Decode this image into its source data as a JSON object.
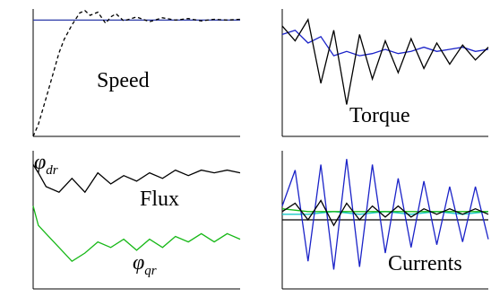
{
  "colors": {
    "reference": "#2b3aa8",
    "trace": "#000000",
    "blue": "#1a22c8",
    "green": "#17b817",
    "cyan": "#19c9c9",
    "axis": "#000000"
  },
  "chart_data": [
    {
      "type": "line",
      "annotation": "Speed",
      "xlim": [
        0,
        0.8
      ],
      "ylim": [
        0,
        160
      ],
      "grid": false,
      "series": [
        {
          "color": "blue",
          "style": "solid",
          "x": [
            0,
            0.8
          ],
          "y": [
            146,
            146
          ]
        },
        {
          "color": "black",
          "style": "dashed",
          "x": [
            0,
            0.02,
            0.05,
            0.08,
            0.1,
            0.12,
            0.15,
            0.18,
            0.2,
            0.22,
            0.25,
            0.28,
            0.3,
            0.32,
            0.35,
            0.4,
            0.45,
            0.5,
            0.55,
            0.6,
            0.65,
            0.7,
            0.75,
            0.8
          ],
          "y": [
            0,
            15,
            48,
            82,
            105,
            122,
            140,
            155,
            158,
            152,
            156,
            142,
            150,
            154,
            145,
            150,
            144,
            149,
            146,
            148,
            145,
            147,
            146,
            147
          ]
        }
      ]
    },
    {
      "type": "line",
      "annotation": "Torque",
      "xlim": [
        0,
        0.8
      ],
      "ylim": [
        -30,
        30
      ],
      "grid": false,
      "series": [
        {
          "color": "blue",
          "style": "solid",
          "x": [
            0,
            0.05,
            0.1,
            0.15,
            0.2,
            0.25,
            0.3,
            0.35,
            0.4,
            0.45,
            0.5,
            0.55,
            0.6,
            0.65,
            0.7,
            0.75,
            0.8
          ],
          "y": [
            18,
            20,
            14,
            17,
            8,
            10,
            8,
            9,
            11,
            9,
            10,
            12,
            10,
            11,
            12,
            10,
            11
          ]
        },
        {
          "color": "black",
          "style": "solid",
          "x": [
            0,
            0.05,
            0.1,
            0.15,
            0.2,
            0.25,
            0.3,
            0.35,
            0.4,
            0.45,
            0.5,
            0.55,
            0.6,
            0.65,
            0.7,
            0.75,
            0.8
          ],
          "y": [
            22,
            15,
            25,
            -5,
            20,
            -15,
            18,
            -3,
            15,
            0,
            16,
            2,
            14,
            4,
            13,
            6,
            12
          ]
        }
      ]
    },
    {
      "type": "line",
      "annotation": "Flux",
      "xlim": [
        0,
        0.8
      ],
      "ylim": [
        -0.15,
        0.35
      ],
      "grid": false,
      "series": [
        {
          "name": "φ_dr",
          "color": "black",
          "style": "solid",
          "x": [
            0,
            0.02,
            0.05,
            0.1,
            0.15,
            0.2,
            0.25,
            0.3,
            0.35,
            0.4,
            0.45,
            0.5,
            0.55,
            0.6,
            0.65,
            0.7,
            0.75,
            0.8
          ],
          "y": [
            0.3,
            0.27,
            0.22,
            0.2,
            0.25,
            0.2,
            0.27,
            0.23,
            0.26,
            0.24,
            0.27,
            0.25,
            0.28,
            0.26,
            0.28,
            0.27,
            0.28,
            0.27
          ]
        },
        {
          "name": "φ_qr",
          "color": "green",
          "style": "solid",
          "x": [
            0,
            0.02,
            0.05,
            0.1,
            0.15,
            0.2,
            0.25,
            0.3,
            0.35,
            0.4,
            0.45,
            0.5,
            0.55,
            0.6,
            0.65,
            0.7,
            0.75,
            0.8
          ],
          "y": [
            0.15,
            0.08,
            0.05,
            0.0,
            -0.05,
            -0.02,
            0.02,
            0.0,
            0.03,
            -0.01,
            0.03,
            0.0,
            0.04,
            0.02,
            0.05,
            0.02,
            0.05,
            0.03
          ]
        }
      ]
    },
    {
      "type": "line",
      "annotation": "Currents",
      "xlim": [
        0,
        0.8
      ],
      "ylim": [
        -25,
        25
      ],
      "grid": false,
      "series": [
        {
          "color": "cyan",
          "style": "solid",
          "x": [
            0,
            0.1,
            0.2,
            0.3,
            0.4,
            0.5,
            0.6,
            0.7,
            0.8
          ],
          "y": [
            2,
            2,
            3,
            2,
            3,
            2,
            3,
            2,
            3
          ]
        },
        {
          "color": "green",
          "style": "solid",
          "x": [
            0,
            0.1,
            0.2,
            0.3,
            0.4,
            0.5,
            0.6,
            0.7,
            0.8
          ],
          "y": [
            4,
            3,
            3,
            3,
            3,
            3,
            3,
            3,
            3
          ]
        },
        {
          "color": "blue",
          "style": "solid",
          "x": [
            0,
            0.05,
            0.1,
            0.15,
            0.2,
            0.25,
            0.3,
            0.35,
            0.4,
            0.45,
            0.5,
            0.55,
            0.6,
            0.65,
            0.7,
            0.75,
            0.8
          ],
          "y": [
            5,
            18,
            -15,
            20,
            -18,
            22,
            -17,
            20,
            -12,
            15,
            -10,
            14,
            -9,
            12,
            -8,
            12,
            -7
          ]
        },
        {
          "color": "black",
          "style": "solid",
          "x": [
            0,
            0.05,
            0.1,
            0.15,
            0.2,
            0.25,
            0.3,
            0.35,
            0.4,
            0.45,
            0.5,
            0.55,
            0.6,
            0.65,
            0.7,
            0.75,
            0.8
          ],
          "y": [
            3,
            6,
            0,
            7,
            -2,
            6,
            0,
            5,
            1,
            5,
            1,
            4,
            2,
            4,
            2,
            4,
            2
          ]
        }
      ]
    }
  ]
}
